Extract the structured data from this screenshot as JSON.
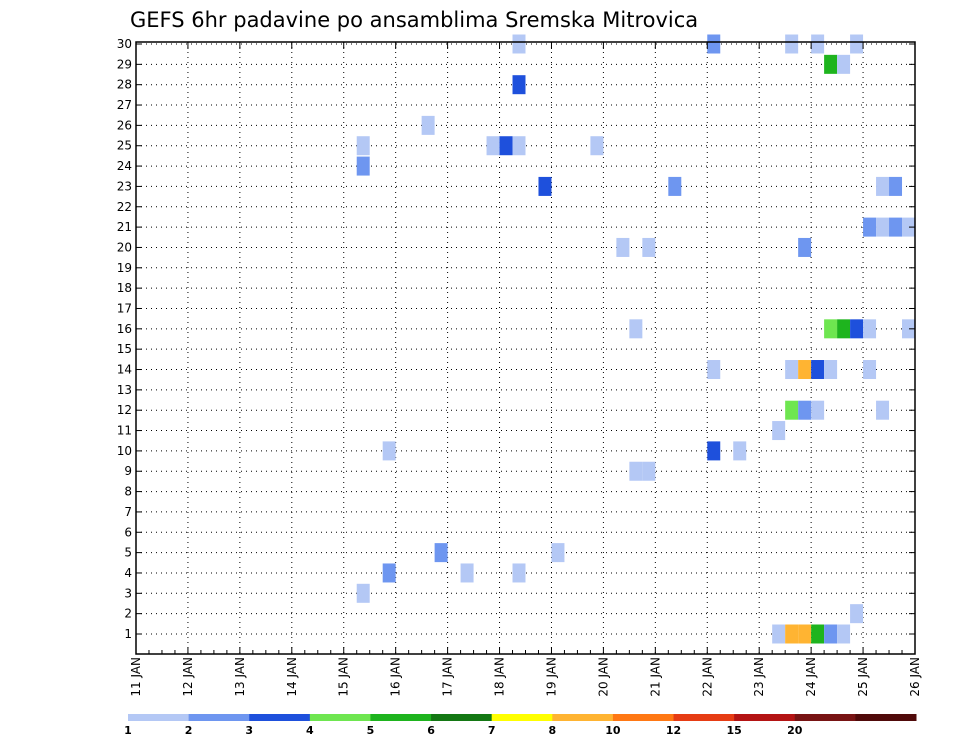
{
  "chart_data": {
    "type": "heatmap",
    "title": "GEFS 6hr padavine po ansamblima Sremska Mitrovica",
    "x_tick_labels": [
      "11 JAN",
      "12 JAN",
      "13 JAN",
      "14 JAN",
      "15 JAN",
      "16 JAN",
      "17 JAN",
      "18 JAN",
      "19 JAN",
      "20 JAN",
      "21 JAN",
      "22 JAN",
      "23 JAN",
      "24 JAN",
      "25 JAN",
      "26 JAN"
    ],
    "x_range_days": [
      11,
      26
    ],
    "step_hours": 6,
    "y_tick_labels": [
      "1",
      "2",
      "3",
      "4",
      "5",
      "6",
      "7",
      "8",
      "9",
      "10",
      "11",
      "12",
      "13",
      "14",
      "15",
      "16",
      "17",
      "18",
      "19",
      "20",
      "21",
      "22",
      "23",
      "24",
      "25",
      "26",
      "27",
      "28",
      "29",
      "30"
    ],
    "y_range": [
      1,
      30
    ],
    "grid": true,
    "colorbar": {
      "colors": [
        "#b4c8f5",
        "#6e96f0",
        "#1e50dc",
        "#6ee650",
        "#1eb41e",
        "#147814",
        "#ffff00",
        "#ffb432",
        "#ff7814",
        "#e63c14",
        "#b41414",
        "#781414",
        "#500a0a"
      ],
      "labels": [
        "1",
        "2",
        "3",
        "4",
        "5",
        "6",
        "7",
        "8",
        "10",
        "12",
        "15",
        "20"
      ]
    },
    "cells": [
      {
        "member": 30,
        "day": 18.25,
        "level": 1
      },
      {
        "member": 30,
        "day": 22.0,
        "level": 2
      },
      {
        "member": 30,
        "day": 23.5,
        "level": 1
      },
      {
        "member": 30,
        "day": 24.0,
        "level": 1
      },
      {
        "member": 30,
        "day": 24.75,
        "level": 1
      },
      {
        "member": 29,
        "day": 24.25,
        "level": 5
      },
      {
        "member": 29,
        "day": 24.5,
        "level": 1
      },
      {
        "member": 28,
        "day": 18.25,
        "level": 3
      },
      {
        "member": 26,
        "day": 16.5,
        "level": 1
      },
      {
        "member": 25,
        "day": 15.25,
        "level": 1
      },
      {
        "member": 25,
        "day": 17.75,
        "level": 1
      },
      {
        "member": 25,
        "day": 18.0,
        "level": 3
      },
      {
        "member": 25,
        "day": 18.25,
        "level": 1
      },
      {
        "member": 25,
        "day": 19.75,
        "level": 1
      },
      {
        "member": 24,
        "day": 15.25,
        "level": 2
      },
      {
        "member": 23,
        "day": 18.75,
        "level": 3
      },
      {
        "member": 23,
        "day": 21.25,
        "level": 2
      },
      {
        "member": 23,
        "day": 25.25,
        "level": 1
      },
      {
        "member": 23,
        "day": 25.5,
        "level": 2
      },
      {
        "member": 21,
        "day": 25.0,
        "level": 2
      },
      {
        "member": 21,
        "day": 25.25,
        "level": 1
      },
      {
        "member": 21,
        "day": 25.5,
        "level": 2
      },
      {
        "member": 21,
        "day": 25.75,
        "level": 1
      },
      {
        "member": 20,
        "day": 20.25,
        "level": 1
      },
      {
        "member": 20,
        "day": 20.75,
        "level": 1
      },
      {
        "member": 20,
        "day": 23.75,
        "level": 2
      },
      {
        "member": 16,
        "day": 20.5,
        "level": 1
      },
      {
        "member": 16,
        "day": 24.25,
        "level": 4
      },
      {
        "member": 16,
        "day": 24.5,
        "level": 5
      },
      {
        "member": 16,
        "day": 24.75,
        "level": 3
      },
      {
        "member": 16,
        "day": 25.0,
        "level": 1
      },
      {
        "member": 16,
        "day": 25.75,
        "level": 1
      },
      {
        "member": 14,
        "day": 22.0,
        "level": 1
      },
      {
        "member": 14,
        "day": 23.5,
        "level": 1
      },
      {
        "member": 14,
        "day": 23.75,
        "level": 8
      },
      {
        "member": 14,
        "day": 24.0,
        "level": 3
      },
      {
        "member": 14,
        "day": 24.25,
        "level": 1
      },
      {
        "member": 14,
        "day": 25.0,
        "level": 1
      },
      {
        "member": 12,
        "day": 23.5,
        "level": 4
      },
      {
        "member": 12,
        "day": 23.75,
        "level": 2
      },
      {
        "member": 12,
        "day": 24.0,
        "level": 1
      },
      {
        "member": 12,
        "day": 25.25,
        "level": 1
      },
      {
        "member": 11,
        "day": 23.25,
        "level": 1
      },
      {
        "member": 10,
        "day": 15.75,
        "level": 1
      },
      {
        "member": 10,
        "day": 22.0,
        "level": 3
      },
      {
        "member": 10,
        "day": 22.5,
        "level": 1
      },
      {
        "member": 9,
        "day": 20.5,
        "level": 1
      },
      {
        "member": 9,
        "day": 20.75,
        "level": 1
      },
      {
        "member": 5,
        "day": 16.75,
        "level": 2
      },
      {
        "member": 5,
        "day": 19.0,
        "level": 1
      },
      {
        "member": 4,
        "day": 15.75,
        "level": 2
      },
      {
        "member": 4,
        "day": 17.25,
        "level": 1
      },
      {
        "member": 4,
        "day": 18.25,
        "level": 1
      },
      {
        "member": 3,
        "day": 15.25,
        "level": 1
      },
      {
        "member": 2,
        "day": 24.75,
        "level": 1
      },
      {
        "member": 1,
        "day": 23.25,
        "level": 1
      },
      {
        "member": 1,
        "day": 23.5,
        "level": 8
      },
      {
        "member": 1,
        "day": 23.75,
        "level": 8
      },
      {
        "member": 1,
        "day": 24.0,
        "level": 5
      },
      {
        "member": 1,
        "day": 24.25,
        "level": 2
      },
      {
        "member": 1,
        "day": 24.5,
        "level": 1
      }
    ]
  }
}
